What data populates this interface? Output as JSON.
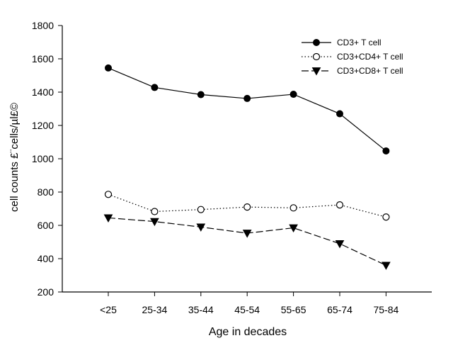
{
  "chart_data": {
    "type": "line",
    "xlabel": "Age in decades",
    "ylabel": "cell counts £¨cells/µl£©",
    "categories": [
      "<25",
      "25-34",
      "35-44",
      "45-54",
      "55-65",
      "65-74",
      "75-84"
    ],
    "ylim": [
      200,
      1800
    ],
    "yticks": [
      200,
      400,
      600,
      800,
      1000,
      1200,
      1400,
      1600,
      1800
    ],
    "grid": false,
    "legend_position": "top-right",
    "series": [
      {
        "name": "CD3+ T cell",
        "marker": "filled-circle",
        "line": "solid",
        "values": [
          1545,
          1428,
          1385,
          1362,
          1387,
          1270,
          1047
        ]
      },
      {
        "name": "CD3+CD4+ T cell",
        "marker": "open-circle",
        "line": "dotted",
        "values": [
          786,
          683,
          695,
          710,
          705,
          723,
          650
        ]
      },
      {
        "name": "CD3+CD8+ T cell",
        "marker": "filled-triangle-down",
        "line": "dashed",
        "values": [
          645,
          623,
          590,
          553,
          585,
          490,
          360
        ]
      }
    ],
    "colors": {
      "line": "#000000",
      "background": "#ffffff"
    }
  }
}
